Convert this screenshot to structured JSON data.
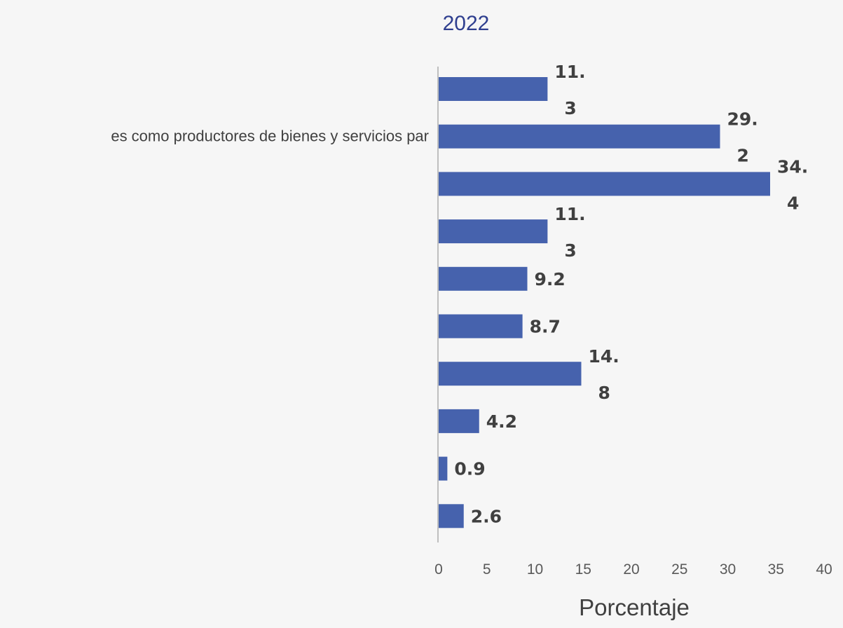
{
  "chart_data": {
    "type": "bar",
    "orientation": "horizontal",
    "title": "2022",
    "xlabel": "Porcentaje",
    "ylabel": "",
    "xlim": [
      0,
      40
    ],
    "xticks": [
      0,
      5,
      10,
      15,
      20,
      25,
      30,
      35,
      40
    ],
    "grid": false,
    "categories": [
      "",
      "es como productores de bienes y servicios par",
      "",
      "",
      "",
      "",
      "",
      "",
      "",
      ""
    ],
    "values": [
      11.3,
      29.2,
      34.4,
      11.3,
      9.2,
      8.7,
      14.8,
      4.2,
      0.9,
      2.6
    ],
    "data_labels": [
      [
        "11.",
        "3"
      ],
      [
        "29.",
        "2"
      ],
      [
        "34.",
        "4"
      ],
      [
        "11.",
        "3"
      ],
      [
        "9.2"
      ],
      [
        "8.7"
      ],
      [
        "14.",
        "8"
      ],
      [
        "4.2"
      ],
      [
        "0.9"
      ],
      [
        "2.6"
      ]
    ],
    "bar_color": "#4662ad",
    "title_color": "#2f3f8f"
  }
}
